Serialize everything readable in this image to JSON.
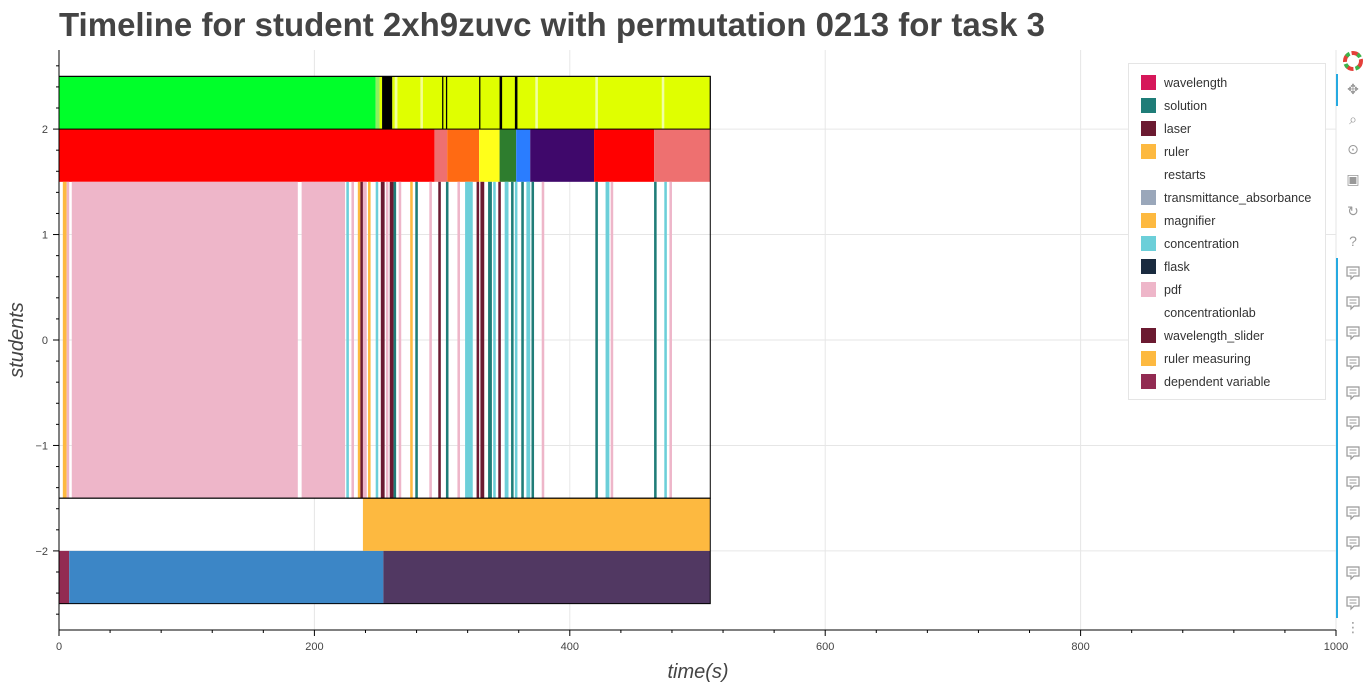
{
  "title": "Timeline for student 2xh9zuvc with permutation 0213 for task 3",
  "toolbar": {
    "tools": [
      "bokeh-logo-icon",
      "pan-icon",
      "box-zoom-icon",
      "wheel-zoom-icon",
      "save-icon",
      "reset-icon",
      "help-icon",
      "hover-icon",
      "hover-icon",
      "hover-icon",
      "hover-icon",
      "hover-icon",
      "hover-icon",
      "hover-icon",
      "hover-icon",
      "hover-icon",
      "hover-icon",
      "hover-icon",
      "hover-icon",
      "more-icon"
    ],
    "more": "⋮"
  },
  "chart_data": {
    "type": "timeline",
    "title": "Timeline for student 2xh9zuvc with permutation 0213 for task 3",
    "xlabel": "time(s)",
    "ylabel": "students",
    "xlim": [
      0,
      1000
    ],
    "ylim": [
      -2.75,
      2.75
    ],
    "xticks": [
      0,
      200,
      400,
      600,
      800,
      1000
    ],
    "xtick_labels": [
      "0",
      "200",
      "400",
      "600",
      "800",
      "1000"
    ],
    "yticks": [
      -2,
      -1,
      0,
      1,
      2
    ],
    "ytick_labels": [
      "−2",
      "−1",
      "0",
      "1",
      "2"
    ],
    "grid": true,
    "legend_position": "top-right",
    "legend": [
      {
        "label": "wavelength",
        "color": "#d6175a"
      },
      {
        "label": "solution",
        "color": "#1f7d78"
      },
      {
        "label": "laser",
        "color": "#6b1a31"
      },
      {
        "label": "ruler",
        "color": "#fdb940"
      },
      {
        "label": "restarts",
        "color": "#ffffff"
      },
      {
        "label": "transmittance_absorbance",
        "color": "#9aa7ba"
      },
      {
        "label": "magnifier",
        "color": "#fdb940"
      },
      {
        "label": "concentration",
        "color": "#6ccfd9"
      },
      {
        "label": "flask",
        "color": "#1a2b3f"
      },
      {
        "label": "pdf",
        "color": "#eeb6c9"
      },
      {
        "label": "concentrationlab",
        "color": "#ffffff"
      },
      {
        "label": "wavelength_slider",
        "color": "#6b1a31"
      },
      {
        "label": "ruler measuring",
        "color": "#fdb940"
      },
      {
        "label": "dependent variable",
        "color": "#922b52"
      }
    ],
    "lanes": [
      {
        "y_range": [
          2,
          2.5
        ],
        "segments": [
          {
            "start": 0,
            "end": 248,
            "color": "#00ff2a"
          },
          {
            "start": 248,
            "end": 251,
            "color": "#90f060"
          },
          {
            "start": 251,
            "end": 253,
            "color": "#e0ff00"
          },
          {
            "start": 253,
            "end": 261,
            "color": "#000000"
          },
          {
            "start": 261,
            "end": 263,
            "color": "#e0ff00"
          },
          {
            "start": 263,
            "end": 265,
            "color": "#f0ffa0"
          },
          {
            "start": 265,
            "end": 510,
            "color": "#e0ff00"
          },
          {
            "start": 283,
            "end": 285,
            "color": "#f4ff90"
          },
          {
            "start": 300,
            "end": 301,
            "color": "#000000"
          },
          {
            "start": 303,
            "end": 304,
            "color": "#000000"
          },
          {
            "start": 329,
            "end": 330,
            "color": "#000000"
          },
          {
            "start": 345,
            "end": 347,
            "color": "#000000"
          },
          {
            "start": 357,
            "end": 359,
            "color": "#000000"
          },
          {
            "start": 373,
            "end": 375,
            "color": "#f0ffa0"
          },
          {
            "start": 420,
            "end": 422,
            "color": "#f0ffa0"
          },
          {
            "start": 472,
            "end": 474,
            "color": "#f0ffa0"
          }
        ]
      },
      {
        "y_range": [
          1.5,
          2
        ],
        "segments": [
          {
            "start": 0,
            "end": 294,
            "color": "#ff0000"
          },
          {
            "start": 294,
            "end": 304,
            "color": "#ee7070"
          },
          {
            "start": 304,
            "end": 329,
            "color": "#ff6a13"
          },
          {
            "start": 329,
            "end": 345,
            "color": "#ffff1a"
          },
          {
            "start": 345,
            "end": 358,
            "color": "#2e7d2e"
          },
          {
            "start": 358,
            "end": 369,
            "color": "#2a7dff"
          },
          {
            "start": 369,
            "end": 419,
            "color": "#3f086b"
          },
          {
            "start": 419,
            "end": 466,
            "color": "#ff0000"
          },
          {
            "start": 466,
            "end": 510,
            "color": "#ee7070"
          }
        ]
      },
      {
        "y_range": [
          -1.5,
          1.5
        ],
        "segments": [
          {
            "start": 3,
            "end": 6,
            "color": "#fdb940"
          },
          {
            "start": 6,
            "end": 8,
            "color": "#eeb6c9"
          },
          {
            "start": 10,
            "end": 187,
            "color": "#eeb6c9"
          },
          {
            "start": 190,
            "end": 224,
            "color": "#eeb6c9"
          },
          {
            "start": 225,
            "end": 227,
            "color": "#6ccfd9"
          },
          {
            "start": 229,
            "end": 231,
            "color": "#eeb6c9"
          },
          {
            "start": 234,
            "end": 236,
            "color": "#fdb940"
          },
          {
            "start": 236,
            "end": 238,
            "color": "#6b1a31"
          },
          {
            "start": 238,
            "end": 241,
            "color": "#eeb6c9"
          },
          {
            "start": 242,
            "end": 244,
            "color": "#fdb940"
          },
          {
            "start": 248,
            "end": 250,
            "color": "#6ccfd9"
          },
          {
            "start": 252,
            "end": 255,
            "color": "#6b1a31"
          },
          {
            "start": 256,
            "end": 258,
            "color": "#eeb6c9"
          },
          {
            "start": 259,
            "end": 262,
            "color": "#6b1a31"
          },
          {
            "start": 262,
            "end": 264,
            "color": "#1f7d78"
          },
          {
            "start": 266,
            "end": 268,
            "color": "#eeb6c9"
          },
          {
            "start": 275,
            "end": 277,
            "color": "#fdb940"
          },
          {
            "start": 279,
            "end": 281,
            "color": "#1f7d78"
          },
          {
            "start": 290,
            "end": 292,
            "color": "#eeb6c9"
          },
          {
            "start": 297,
            "end": 299,
            "color": "#6b1a31"
          },
          {
            "start": 303,
            "end": 305,
            "color": "#1f7d78"
          },
          {
            "start": 312,
            "end": 314,
            "color": "#eeb6c9"
          },
          {
            "start": 318,
            "end": 324,
            "color": "#6ccfd9"
          },
          {
            "start": 327,
            "end": 329,
            "color": "#6b1a31"
          },
          {
            "start": 330,
            "end": 333,
            "color": "#6b1a31"
          },
          {
            "start": 336,
            "end": 339,
            "color": "#1f7d78"
          },
          {
            "start": 340,
            "end": 342,
            "color": "#6ccfd9"
          },
          {
            "start": 344,
            "end": 346,
            "color": "#6b1a31"
          },
          {
            "start": 349,
            "end": 352,
            "color": "#6ccfd9"
          },
          {
            "start": 354,
            "end": 356,
            "color": "#1f7d78"
          },
          {
            "start": 357,
            "end": 359,
            "color": "#6ccfd9"
          },
          {
            "start": 362,
            "end": 364,
            "color": "#1f7d78"
          },
          {
            "start": 366,
            "end": 369,
            "color": "#6ccfd9"
          },
          {
            "start": 370,
            "end": 372,
            "color": "#1f7d78"
          },
          {
            "start": 378,
            "end": 380,
            "color": "#eeb6c9"
          },
          {
            "start": 420,
            "end": 422,
            "color": "#1f7d78"
          },
          {
            "start": 428,
            "end": 431,
            "color": "#6ccfd9"
          },
          {
            "start": 432,
            "end": 434,
            "color": "#eeb6c9"
          },
          {
            "start": 466,
            "end": 468,
            "color": "#1f7d78"
          },
          {
            "start": 474,
            "end": 476,
            "color": "#6ccfd9"
          },
          {
            "start": 478,
            "end": 480,
            "color": "#eeb6c9"
          }
        ]
      },
      {
        "y_range": [
          -2,
          -1.5
        ],
        "segments": [
          {
            "start": 238,
            "end": 510,
            "color": "#fdb940"
          }
        ]
      },
      {
        "y_range": [
          -2.5,
          -2
        ],
        "segments": [
          {
            "start": 0,
            "end": 8,
            "color": "#922b52"
          },
          {
            "start": 8,
            "end": 254,
            "color": "#3c86c6"
          },
          {
            "start": 254,
            "end": 510,
            "color": "#513862"
          }
        ]
      }
    ],
    "outlined_boxes": [
      {
        "x_range": [
          0,
          510
        ],
        "y_range": [
          2,
          2.5
        ]
      },
      {
        "x_range": [
          0,
          510
        ],
        "y_range": [
          -1.5,
          2.5
        ]
      },
      {
        "x_range": [
          0,
          510
        ],
        "y_range": [
          -2.5,
          -1.5
        ]
      }
    ]
  }
}
